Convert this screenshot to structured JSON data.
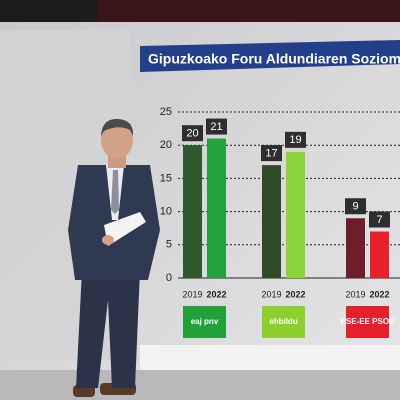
{
  "chart_data": {
    "type": "bar",
    "title": "Gipuzkoako Foru Aldundiaren Soziom",
    "categories": [
      "eaj pnv",
      "ehbildu",
      "PSE-EE PSOE"
    ],
    "category_colors": [
      "#22a03a",
      "#8ccf2e",
      "#e3202c"
    ],
    "series": [
      {
        "name": "2019",
        "colors": [
          "#2d5a2d",
          "#2f4a26",
          "#6e1e2a"
        ],
        "values": [
          20,
          17,
          9
        ]
      },
      {
        "name": "2022",
        "colors": [
          "#23a23c",
          "#8cd23a",
          "#e8222c"
        ],
        "values": [
          21,
          19,
          7
        ]
      }
    ],
    "ylim": [
      0,
      25
    ],
    "yticks": [
      0,
      5,
      10,
      15,
      20,
      25
    ],
    "grid": true
  }
}
